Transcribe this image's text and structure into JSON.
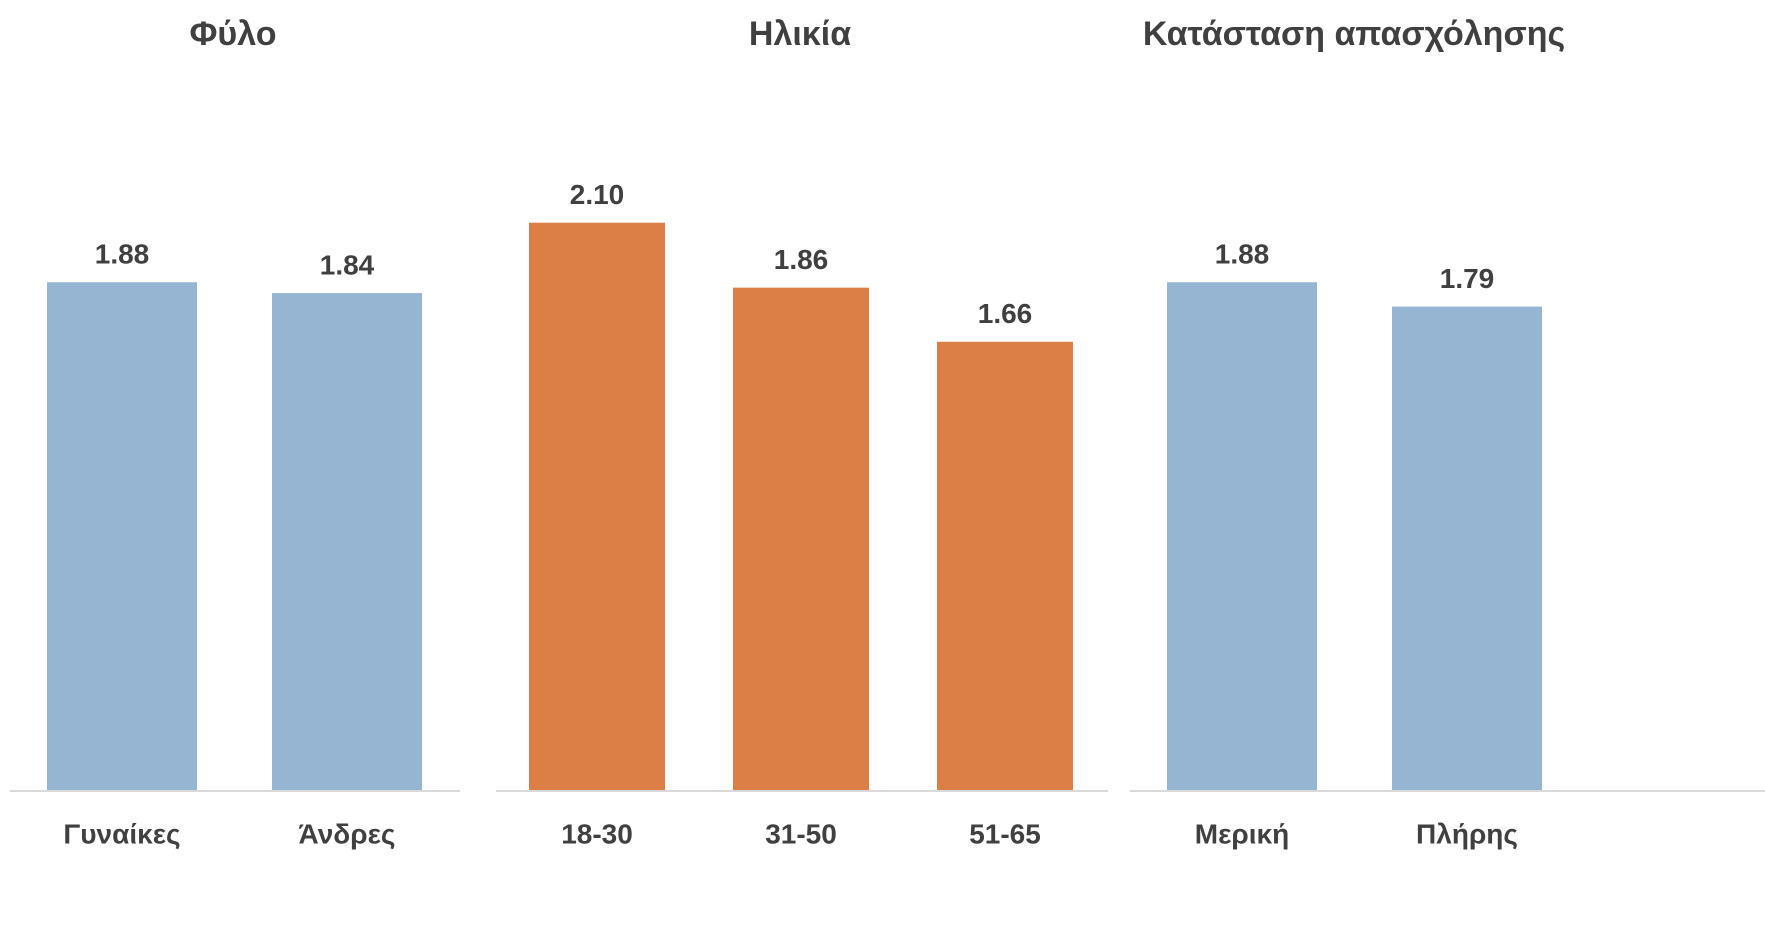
{
  "chart_data": [
    {
      "type": "bar",
      "title": "Φύλο",
      "categories": [
        "Γυναίκες",
        "Άνδρες"
      ],
      "values": [
        1.88,
        1.84
      ],
      "value_labels": [
        "1.88",
        "1.84"
      ],
      "color": "#95b5d3",
      "ylim": [
        0,
        2.45
      ],
      "grid": false
    },
    {
      "type": "bar",
      "title": "Ηλικία",
      "categories": [
        "18-30",
        "31-50",
        "51-65"
      ],
      "values": [
        2.1,
        1.86,
        1.66
      ],
      "value_labels": [
        "2.10",
        "1.86",
        "1.66"
      ],
      "color": "#dc7f47",
      "ylim": [
        0,
        2.45
      ],
      "grid": false
    },
    {
      "type": "bar",
      "title": "Κατάσταση απασχόλησης",
      "categories": [
        "Μερική",
        "Πλήρης"
      ],
      "values": [
        1.88,
        1.79
      ],
      "value_labels": [
        "1.88",
        "1.79"
      ],
      "color": "#95b5d3",
      "ylim": [
        0,
        2.45
      ],
      "grid": false
    }
  ]
}
